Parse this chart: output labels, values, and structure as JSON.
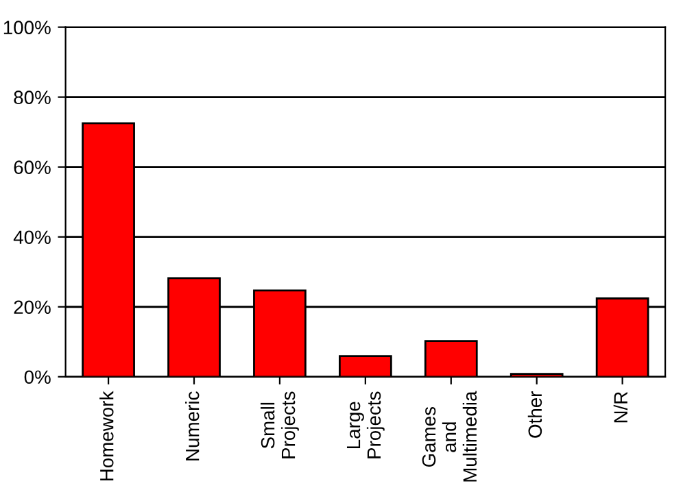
{
  "chart_data": {
    "type": "bar",
    "categories": [
      "Homework",
      "Numeric",
      "Small\nProjects",
      "Large\nProjects",
      "Games\nand\nMultimedia",
      "Other",
      "N/R"
    ],
    "values": [
      72.5,
      28.2,
      24.7,
      5.9,
      10.2,
      0.8,
      22.4
    ],
    "color": "#ff0000",
    "ylim": [
      0,
      100
    ],
    "yticks": [
      {
        "value": 0,
        "label": "0%"
      },
      {
        "value": 20,
        "label": "20%"
      },
      {
        "value": 40,
        "label": "40%"
      },
      {
        "value": 60,
        "label": "60%"
      },
      {
        "value": 80,
        "label": "80%"
      },
      {
        "value": 100,
        "label": "100%"
      }
    ],
    "grid": "y"
  }
}
